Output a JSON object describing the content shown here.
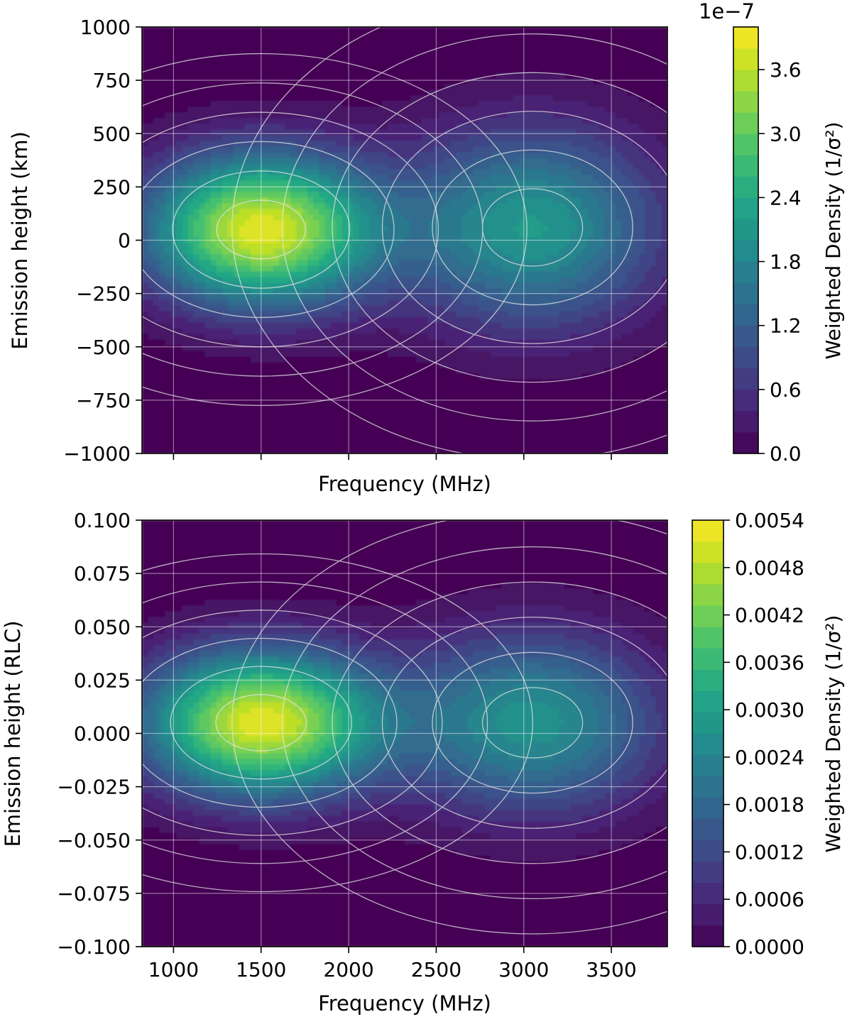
{
  "colors": {
    "grid": "#ffffff",
    "contour_line": "#e6e6e6",
    "axis": "#000000",
    "colormap": [
      "#440154",
      "#482475",
      "#414487",
      "#355f8d",
      "#2a788e",
      "#21918c",
      "#22a884",
      "#44bf70",
      "#7ad151",
      "#bddf26",
      "#fde725"
    ]
  },
  "chart_data": [
    {
      "type": "heatmap",
      "subtype": "filled-contour",
      "title": "",
      "xlabel": "Frequency (MHz)",
      "ylabel": "Emission height (km)",
      "xlim": [
        820,
        3820
      ],
      "ylim": [
        -1000,
        1000
      ],
      "x_ticks": [
        1000,
        1500,
        2000,
        2500,
        3000,
        3500
      ],
      "x_tick_labels_visible": false,
      "y_ticks": [
        1000,
        750,
        500,
        250,
        0,
        -250,
        -500,
        -750,
        -1000
      ],
      "y_tick_labels": [
        "1000",
        "750",
        "500",
        "250",
        "0",
        "−250",
        "−500",
        "−750",
        "−1000"
      ],
      "grid": true,
      "peaks": [
        {
          "x": 1500,
          "y": 50,
          "sx": 460,
          "sy": 250,
          "amp": 3.9
        },
        {
          "x": 3050,
          "y": 60,
          "sx": 520,
          "sy": 330,
          "amp": 2.2
        }
      ],
      "colorbar": {
        "label": "Weighted Density (1/σ²)",
        "offset_text": "1e−7",
        "min": 0,
        "max": 4.0,
        "ticks": [
          0,
          0.6,
          1.2,
          1.8,
          2.4,
          3.0,
          3.6
        ],
        "tick_labels": [
          "0.0",
          "0.6",
          "1.2",
          "1.8",
          "2.4",
          "3.0",
          "3.6"
        ]
      }
    },
    {
      "type": "heatmap",
      "subtype": "filled-contour",
      "title": "",
      "xlabel": "Frequency (MHz)",
      "ylabel": "Emission height (RLC)",
      "xlim": [
        820,
        3820
      ],
      "ylim": [
        -0.1,
        0.1
      ],
      "x_ticks": [
        1000,
        1500,
        2000,
        2500,
        3000,
        3500
      ],
      "x_tick_labels": [
        "1000",
        "1500",
        "2000",
        "2500",
        "3000",
        "3500"
      ],
      "y_ticks": [
        0.1,
        0.075,
        0.05,
        0.025,
        0,
        -0.025,
        -0.05,
        -0.075,
        -0.1
      ],
      "y_tick_labels": [
        "0.100",
        "0.075",
        "0.050",
        "0.025",
        "0.000",
        "−0.025",
        "−0.050",
        "−0.075",
        "−0.100"
      ],
      "grid": true,
      "peaks": [
        {
          "x": 1500,
          "y": 0.005,
          "sx": 470,
          "sy": 0.024,
          "amp": 5.4
        },
        {
          "x": 3050,
          "y": 0.005,
          "sx": 520,
          "sy": 0.03,
          "amp": 2.9
        }
      ],
      "colorbar": {
        "label": "Weighted Density (1/σ²)",
        "offset_text": "",
        "min": 0,
        "max": 0.0054,
        "ticks": [
          0,
          0.0006,
          0.0012,
          0.0018,
          0.0024,
          0.003,
          0.0036,
          0.0042,
          0.0048,
          0.0054
        ],
        "tick_labels": [
          "0.0000",
          "0.0006",
          "0.0012",
          "0.0018",
          "0.0024",
          "0.0030",
          "0.0036",
          "0.0042",
          "0.0048",
          "0.0054"
        ]
      }
    }
  ]
}
